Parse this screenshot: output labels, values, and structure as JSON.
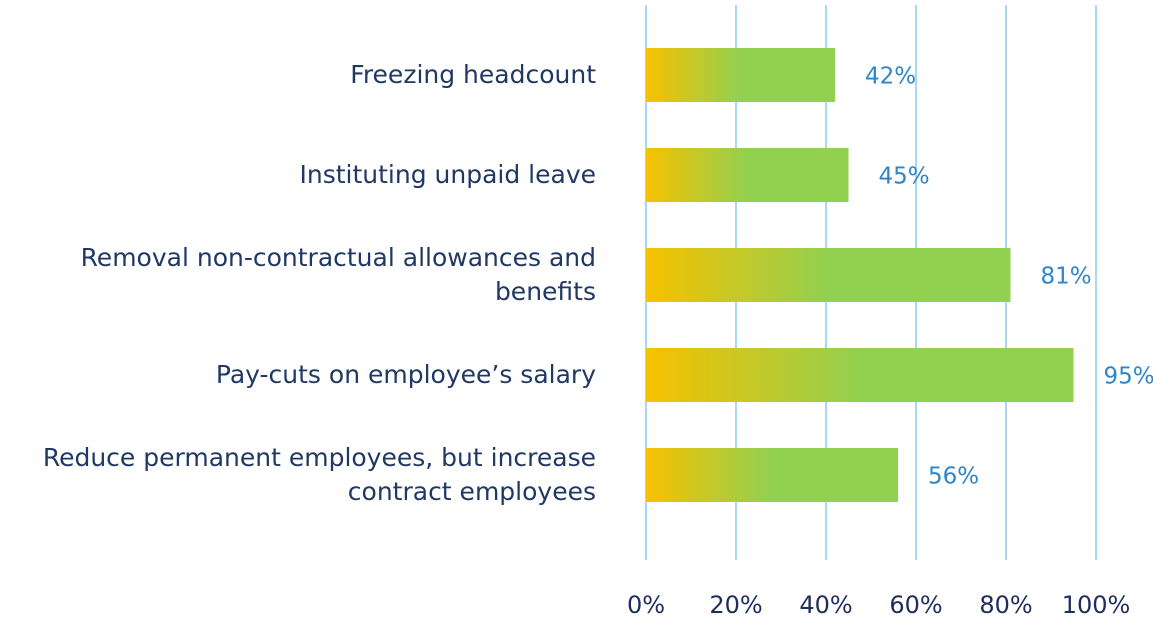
{
  "chart_data": {
    "type": "bar",
    "orientation": "horizontal",
    "categories": [
      "Freezing headcount",
      "Instituting unpaid leave",
      "Removal non-contractual allowances and benefits",
      "Pay-cuts on employee’s salary",
      "Reduce permanent employees, but increase contract employees"
    ],
    "values": [
      42,
      45,
      81,
      95,
      56
    ],
    "value_labels": [
      "42%",
      "45%",
      "81%",
      "95%",
      "56%"
    ],
    "colors": [
      "#f7c100",
      "#92d050"
    ],
    "xlim": [
      0,
      100
    ],
    "xticks": [
      {
        "value": 0,
        "label": "0%"
      },
      {
        "value": 20,
        "label": "20%"
      },
      {
        "value": 40,
        "label": "40%"
      },
      {
        "value": 60,
        "label": "60%"
      },
      {
        "value": 80,
        "label": "80%"
      },
      {
        "value": 100,
        "label": "100%"
      }
    ],
    "grid": true
  }
}
